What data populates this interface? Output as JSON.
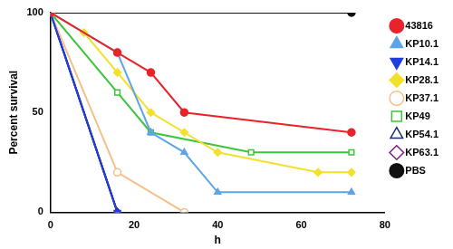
{
  "chart_data": {
    "type": "line",
    "x_label": "h",
    "y_label": "Percent survival",
    "xlim": [
      0,
      80
    ],
    "xticks": [
      0,
      20,
      40,
      60,
      80
    ],
    "ylim": [
      0,
      100
    ],
    "yticks": [
      0,
      50,
      100
    ],
    "grid": false,
    "legend": "right",
    "series": [
      {
        "name": "43816",
        "color": "#e8232a",
        "marker": "circle",
        "x": [
          0,
          16,
          24,
          32,
          72
        ],
        "values": [
          100,
          80,
          70,
          50,
          40
        ]
      },
      {
        "name": "KP10.1",
        "color": "#5ea4e6",
        "marker": "triangle",
        "x": [
          0,
          16,
          24,
          32,
          40,
          72
        ],
        "values": [
          100,
          80,
          40,
          30,
          10,
          10
        ]
      },
      {
        "name": "KP14.1",
        "color": "#1f3ee0",
        "marker": "triangle-down",
        "x": [
          0,
          16
        ],
        "values": [
          100,
          0
        ]
      },
      {
        "name": "KP28.1",
        "color": "#f2e02a",
        "marker": "diamond",
        "x": [
          0,
          8,
          16,
          24,
          32,
          40,
          64,
          72
        ],
        "values": [
          100,
          90,
          70,
          50,
          40,
          30,
          20,
          20
        ]
      },
      {
        "name": "KP37.1",
        "color": "#f4bf88",
        "marker": "circle-open",
        "x": [
          0,
          16,
          32
        ],
        "values": [
          100,
          20,
          0
        ]
      },
      {
        "name": "KP49",
        "color": "#3cc43c",
        "marker": "square-open",
        "x": [
          0,
          16,
          24,
          48,
          72
        ],
        "values": [
          100,
          60,
          40,
          30,
          30
        ]
      },
      {
        "name": "KP54.1",
        "color": "#1b2a6e",
        "marker": "triangle-open",
        "x": [
          0,
          16
        ],
        "values": [
          100,
          0
        ]
      },
      {
        "name": "KP63.1",
        "color": "#7a1e8c",
        "marker": "diamond-open",
        "x": [
          0,
          16
        ],
        "values": [
          100,
          0
        ]
      },
      {
        "name": "PBS",
        "color": "#111111",
        "marker": "circle",
        "x": [
          0,
          72
        ],
        "values": [
          100,
          100
        ]
      }
    ]
  }
}
